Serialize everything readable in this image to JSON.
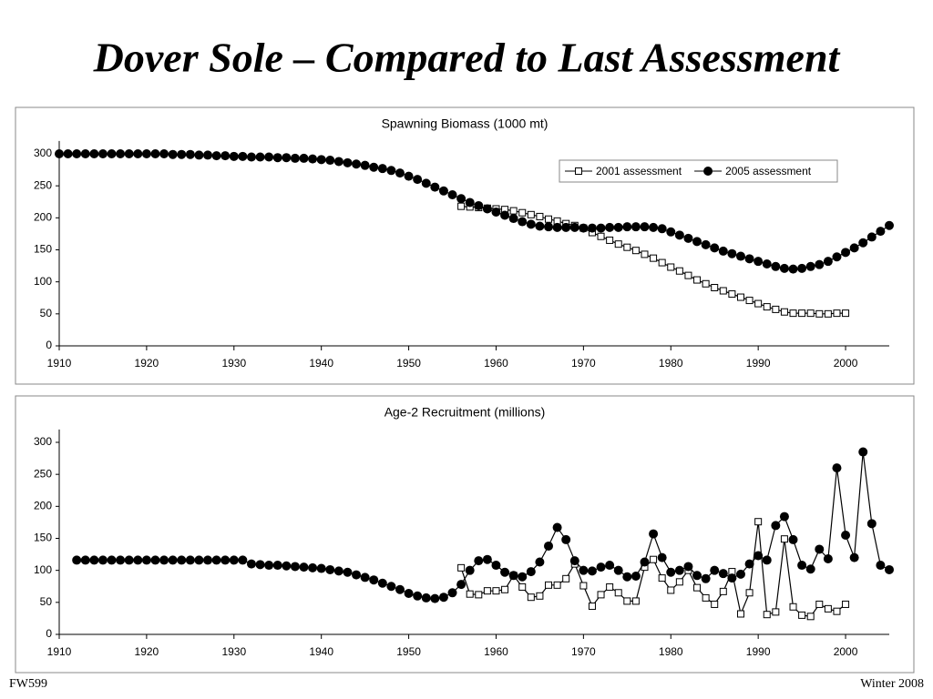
{
  "title": "Dover Sole – Compared to Last Assessment",
  "footer_left": "FW599",
  "footer_right": "Winter 2008",
  "chart_data": [
    {
      "type": "line",
      "title": "Spawning Biomass (1000 mt)",
      "xlim": [
        1910,
        2005
      ],
      "xticks": [
        1910,
        1920,
        1930,
        1940,
        1950,
        1960,
        1970,
        1980,
        1990,
        2000
      ],
      "ylim": [
        0,
        320
      ],
      "yticks": [
        0,
        50,
        100,
        150,
        200,
        250,
        300
      ],
      "legend": "upper right",
      "series": [
        {
          "name": "2001 assessment",
          "color": "#000000",
          "marker": "square",
          "x": [
            1956,
            1957,
            1958,
            1959,
            1960,
            1961,
            1962,
            1963,
            1964,
            1965,
            1966,
            1967,
            1968,
            1969,
            1970,
            1971,
            1972,
            1973,
            1974,
            1975,
            1976,
            1977,
            1978,
            1979,
            1980,
            1981,
            1982,
            1983,
            1984,
            1985,
            1986,
            1987,
            1988,
            1989,
            1990,
            1991,
            1992,
            1993,
            1994,
            1995,
            1996,
            1997,
            1998,
            1999,
            2000
          ],
          "values": [
            218,
            217,
            216,
            215,
            214,
            213,
            211,
            208,
            205,
            202,
            198,
            195,
            191,
            188,
            184,
            177,
            171,
            165,
            159,
            154,
            149,
            143,
            137,
            130,
            123,
            117,
            110,
            103,
            97,
            91,
            86,
            81,
            76,
            71,
            66,
            61,
            57,
            53,
            51,
            51,
            51,
            50,
            50,
            51,
            51
          ]
        },
        {
          "name": "2005 assessment",
          "color": "#000000",
          "marker": "circle",
          "x": [
            1910,
            1911,
            1912,
            1913,
            1914,
            1915,
            1916,
            1917,
            1918,
            1919,
            1920,
            1921,
            1922,
            1923,
            1924,
            1925,
            1926,
            1927,
            1928,
            1929,
            1930,
            1931,
            1932,
            1933,
            1934,
            1935,
            1936,
            1937,
            1938,
            1939,
            1940,
            1941,
            1942,
            1943,
            1944,
            1945,
            1946,
            1947,
            1948,
            1949,
            1950,
            1951,
            1952,
            1953,
            1954,
            1955,
            1956,
            1957,
            1958,
            1959,
            1960,
            1961,
            1962,
            1963,
            1964,
            1965,
            1966,
            1967,
            1968,
            1969,
            1970,
            1971,
            1972,
            1973,
            1974,
            1975,
            1976,
            1977,
            1978,
            1979,
            1980,
            1981,
            1982,
            1983,
            1984,
            1985,
            1986,
            1987,
            1988,
            1989,
            1990,
            1991,
            1992,
            1993,
            1994,
            1995,
            1996,
            1997,
            1998,
            1999,
            2000,
            2001,
            2002,
            2003,
            2004,
            2005
          ],
          "values": [
            300,
            300,
            300,
            300,
            300,
            300,
            300,
            300,
            300,
            300,
            300,
            300,
            300,
            299,
            299,
            299,
            298,
            298,
            297,
            297,
            296,
            296,
            295,
            295,
            295,
            294,
            294,
            293,
            293,
            292,
            291,
            290,
            288,
            286,
            284,
            282,
            279,
            277,
            274,
            270,
            265,
            260,
            254,
            248,
            242,
            236,
            230,
            224,
            219,
            214,
            209,
            204,
            199,
            194,
            190,
            187,
            186,
            185,
            185,
            185,
            184,
            184,
            184,
            185,
            185,
            186,
            186,
            186,
            185,
            183,
            178,
            173,
            168,
            163,
            158,
            153,
            148,
            144,
            140,
            136,
            132,
            128,
            124,
            121,
            120,
            121,
            124,
            127,
            132,
            139,
            146,
            153,
            161,
            170,
            179,
            188
          ]
        }
      ]
    },
    {
      "type": "line",
      "title": "Age-2 Recruitment (millions)",
      "xlim": [
        1910,
        2005
      ],
      "xticks": [
        1910,
        1920,
        1930,
        1940,
        1950,
        1960,
        1970,
        1980,
        1990,
        2000
      ],
      "ylim": [
        0,
        320
      ],
      "yticks": [
        0,
        50,
        100,
        150,
        200,
        250,
        300
      ],
      "series": [
        {
          "color": "#000000",
          "marker": "square",
          "x": [
            1956,
            1957,
            1958,
            1959,
            1960,
            1961,
            1962,
            1963,
            1964,
            1965,
            1966,
            1967,
            1968,
            1969,
            1970,
            1971,
            1972,
            1973,
            1974,
            1975,
            1976,
            1977,
            1978,
            1979,
            1980,
            1981,
            1982,
            1983,
            1984,
            1985,
            1986,
            1987,
            1988,
            1989,
            1990,
            1991,
            1992,
            1993,
            1994,
            1995,
            1996,
            1997,
            1998,
            1999,
            2000
          ],
          "values": [
            104,
            63,
            62,
            68,
            68,
            70,
            92,
            74,
            58,
            60,
            77,
            77,
            87,
            110,
            76,
            44,
            62,
            74,
            65,
            52,
            52,
            105,
            117,
            88,
            69,
            82,
            100,
            73,
            57,
            47,
            67,
            98,
            32,
            65,
            176,
            31,
            35,
            149,
            43,
            30,
            28,
            47,
            40,
            36,
            47
          ]
        },
        {
          "color": "#000000",
          "marker": "circle",
          "x": [
            1912,
            1913,
            1914,
            1915,
            1916,
            1917,
            1918,
            1919,
            1920,
            1921,
            1922,
            1923,
            1924,
            1925,
            1926,
            1927,
            1928,
            1929,
            1930,
            1931,
            1932,
            1933,
            1934,
            1935,
            1936,
            1937,
            1938,
            1939,
            1940,
            1941,
            1942,
            1943,
            1944,
            1945,
            1946,
            1947,
            1948,
            1949,
            1950,
            1951,
            1952,
            1953,
            1954,
            1955,
            1956,
            1957,
            1958,
            1959,
            1960,
            1961,
            1962,
            1963,
            1964,
            1965,
            1966,
            1967,
            1968,
            1969,
            1970,
            1971,
            1972,
            1973,
            1974,
            1975,
            1976,
            1977,
            1978,
            1979,
            1980,
            1981,
            1982,
            1983,
            1984,
            1985,
            1986,
            1987,
            1988,
            1989,
            1990,
            1991,
            1992,
            1993,
            1994,
            1995,
            1996,
            1997,
            1998,
            1999,
            2000,
            2001,
            2002,
            2003,
            2004,
            2005
          ],
          "values": [
            116,
            116,
            116,
            116,
            116,
            116,
            116,
            116,
            116,
            116,
            116,
            116,
            116,
            116,
            116,
            116,
            116,
            116,
            116,
            116,
            110,
            109,
            108,
            108,
            107,
            106,
            105,
            104,
            103,
            101,
            99,
            97,
            93,
            89,
            85,
            80,
            75,
            70,
            64,
            60,
            57,
            56,
            58,
            65,
            78,
            100,
            115,
            117,
            108,
            97,
            92,
            90,
            98,
            113,
            138,
            167,
            148,
            115,
            100,
            99,
            105,
            108,
            100,
            90,
            91,
            113,
            157,
            120,
            97,
            100,
            106,
            92,
            87,
            100,
            95,
            88,
            94,
            110,
            123,
            116,
            170,
            184,
            148,
            108,
            102,
            133,
            118,
            260,
            155,
            120,
            285,
            173,
            108,
            101
          ]
        }
      ]
    }
  ]
}
